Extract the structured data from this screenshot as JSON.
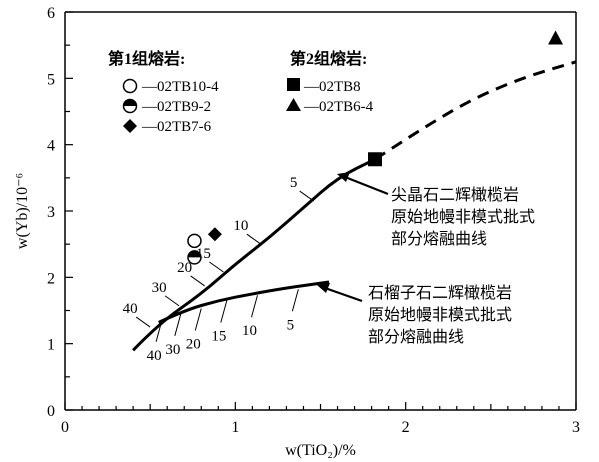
{
  "chart_data": {
    "type": "scatter",
    "xlabel": "w(TiO₂)/%",
    "ylabel": "w(Yb)/10⁻⁶",
    "xlim": [
      0,
      3
    ],
    "ylim": [
      0,
      6
    ],
    "x_ticks": [
      "0",
      "1",
      "2",
      "3"
    ],
    "y_ticks": [
      "0",
      "1",
      "2",
      "3",
      "4",
      "5",
      "6"
    ],
    "grid": false,
    "legend": {
      "placement": "top-left",
      "groups": [
        {
          "title": "第1组熔岩:",
          "entries": [
            {
              "marker": "circle-open",
              "label": "—02TB10-4"
            },
            {
              "marker": "circle-half",
              "label": "—02TB9-2"
            },
            {
              "marker": "diamond",
              "label": "—02TB7-6"
            }
          ]
        },
        {
          "title": "第2组熔岩:",
          "entries": [
            {
              "marker": "square",
              "label": "—02TB8"
            },
            {
              "marker": "triangle",
              "label": "—02TB6-4"
            }
          ]
        }
      ]
    },
    "series": [
      {
        "name": "02TB10-4",
        "marker": "circle-open",
        "points": [
          {
            "x": 0.76,
            "y": 2.55
          }
        ]
      },
      {
        "name": "02TB9-2",
        "marker": "circle-half",
        "points": [
          {
            "x": 0.76,
            "y": 2.3
          }
        ]
      },
      {
        "name": "02TB7-6",
        "marker": "diamond",
        "points": [
          {
            "x": 0.88,
            "y": 2.65
          }
        ]
      },
      {
        "name": "02TB8",
        "marker": "square",
        "points": [
          {
            "x": 1.82,
            "y": 3.78
          }
        ]
      },
      {
        "name": "02TB6-4",
        "marker": "triangle",
        "points": [
          {
            "x": 2.88,
            "y": 5.6
          }
        ]
      }
    ],
    "curves": [
      {
        "label_lines": [
          "尖晶石二辉橄榄岩",
          "原始地幔非模式批式",
          "部分熔融曲线"
        ],
        "solid": [
          [
            0.4,
            0.9
          ],
          [
            0.55,
            1.3
          ],
          [
            0.8,
            1.75
          ],
          [
            1.0,
            2.2
          ],
          [
            1.2,
            2.6
          ],
          [
            1.4,
            3.05
          ],
          [
            1.6,
            3.5
          ],
          [
            1.82,
            3.78
          ]
        ],
        "dashed": [
          [
            1.82,
            3.78
          ],
          [
            2.1,
            4.25
          ],
          [
            2.4,
            4.7
          ],
          [
            2.7,
            5.02
          ],
          [
            3.0,
            5.25
          ]
        ],
        "melt_marks": [
          {
            "label": "40",
            "x": 0.5,
            "y": 1.25
          },
          {
            "label": "30",
            "x": 0.67,
            "y": 1.57
          },
          {
            "label": "20",
            "x": 0.82,
            "y": 1.87
          },
          {
            "label": "15",
            "x": 0.93,
            "y": 2.08
          },
          {
            "label": "10",
            "x": 1.15,
            "y": 2.5
          },
          {
            "label": "5",
            "x": 1.46,
            "y": 3.15
          }
        ]
      },
      {
        "label_lines": [
          "石榴子石二辉橄榄岩",
          "原始地幔非模式批式",
          "部分熔融曲线"
        ],
        "solid": [
          [
            0.55,
            1.32
          ],
          [
            0.7,
            1.5
          ],
          [
            0.9,
            1.65
          ],
          [
            1.1,
            1.75
          ],
          [
            1.3,
            1.84
          ],
          [
            1.55,
            1.93
          ]
        ],
        "melt_marks": [
          {
            "label": "40",
            "x": 0.57,
            "y": 1.36
          },
          {
            "label": "30",
            "x": 0.68,
            "y": 1.45
          },
          {
            "label": "20",
            "x": 0.8,
            "y": 1.53
          },
          {
            "label": "15",
            "x": 0.95,
            "y": 1.65
          },
          {
            "label": "10",
            "x": 1.13,
            "y": 1.73
          },
          {
            "label": "5",
            "x": 1.37,
            "y": 1.82
          }
        ]
      }
    ]
  }
}
